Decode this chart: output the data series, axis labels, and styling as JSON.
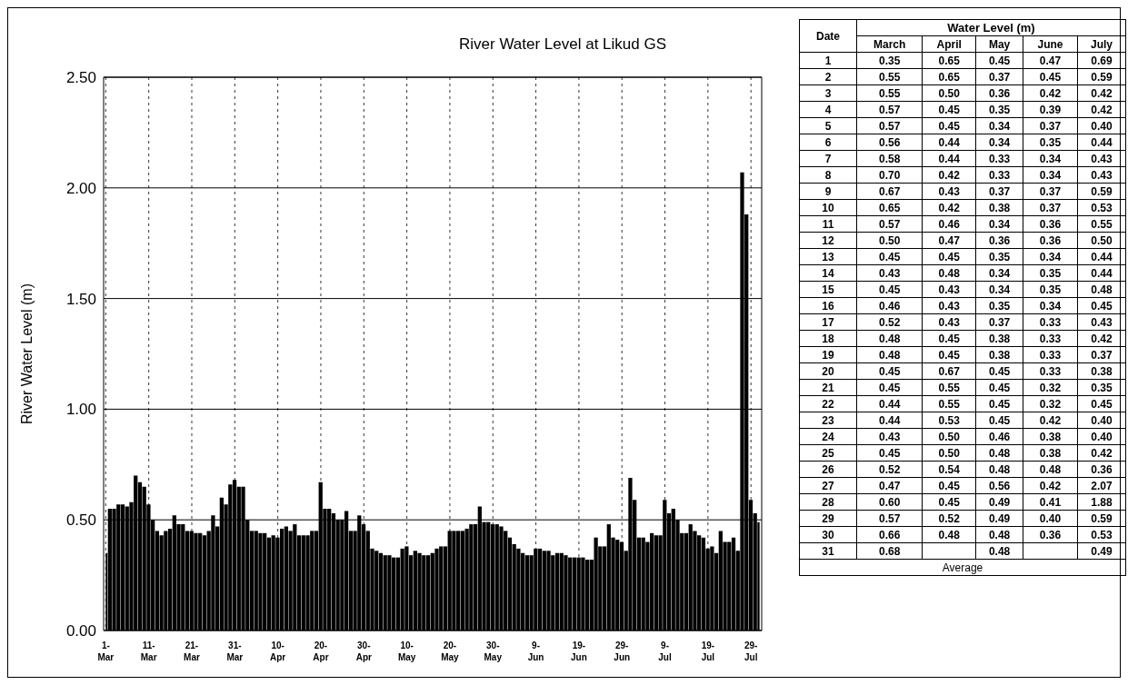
{
  "chart_data": [
    {
      "type": "bar",
      "title": "River Water Level at Likud GS",
      "ylabel": "River Water Level (m)",
      "x": [
        "--03-01",
        "--03-02",
        "--03-03",
        "--03-04",
        "--03-05",
        "--03-06",
        "--03-07",
        "--03-08",
        "--03-09",
        "--03-10",
        "--03-11",
        "--03-12",
        "--03-13",
        "--03-14",
        "--03-15",
        "--03-16",
        "--03-17",
        "--03-18",
        "--03-19",
        "--03-20",
        "--03-21",
        "--03-22",
        "--03-23",
        "--03-24",
        "--03-25",
        "--03-26",
        "--03-27",
        "--03-28",
        "--03-29",
        "--03-30",
        "--03-31",
        "--04-01",
        "--04-02",
        "--04-03",
        "--04-04",
        "--04-05",
        "--04-06",
        "--04-07",
        "--04-08",
        "--04-09",
        "--04-10",
        "--04-11",
        "--04-12",
        "--04-13",
        "--04-14",
        "--04-15",
        "--04-16",
        "--04-17",
        "--04-18",
        "--04-19",
        "--04-20",
        "--04-21",
        "--04-22",
        "--04-23",
        "--04-24",
        "--04-25",
        "--04-26",
        "--04-27",
        "--04-28",
        "--04-29",
        "--04-30",
        "--05-01",
        "--05-02",
        "--05-03",
        "--05-04",
        "--05-05",
        "--05-06",
        "--05-07",
        "--05-08",
        "--05-09",
        "--05-10",
        "--05-11",
        "--05-12",
        "--05-13",
        "--05-14",
        "--05-15",
        "--05-16",
        "--05-17",
        "--05-18",
        "--05-19",
        "--05-20",
        "--05-21",
        "--05-22",
        "--05-23",
        "--05-24",
        "--05-25",
        "--05-26",
        "--05-27",
        "--05-28",
        "--05-29",
        "--05-30",
        "--05-31",
        "--06-01",
        "--06-02",
        "--06-03",
        "--06-04",
        "--06-05",
        "--06-06",
        "--06-07",
        "--06-08",
        "--06-09",
        "--06-10",
        "--06-11",
        "--06-12",
        "--06-13",
        "--06-14",
        "--06-15",
        "--06-16",
        "--06-17",
        "--06-18",
        "--06-19",
        "--06-20",
        "--06-21",
        "--06-22",
        "--06-23",
        "--06-24",
        "--06-25",
        "--06-26",
        "--06-27",
        "--06-28",
        "--06-29",
        "--06-30",
        "--07-01",
        "--07-02",
        "--07-03",
        "--07-04",
        "--07-05",
        "--07-06",
        "--07-07",
        "--07-08",
        "--07-09",
        "--07-10",
        "--07-11",
        "--07-12",
        "--07-13",
        "--07-14",
        "--07-15",
        "--07-16",
        "--07-17",
        "--07-18",
        "--07-19",
        "--07-20",
        "--07-21",
        "--07-22",
        "--07-23",
        "--07-24",
        "--07-25",
        "--07-26",
        "--07-27",
        "--07-28",
        "--07-29",
        "--07-30",
        "--07-31"
      ],
      "values": [
        0.35,
        0.55,
        0.55,
        0.57,
        0.57,
        0.56,
        0.58,
        0.7,
        0.67,
        0.65,
        0.57,
        0.5,
        0.45,
        0.43,
        0.45,
        0.46,
        0.52,
        0.48,
        0.48,
        0.45,
        0.45,
        0.44,
        0.44,
        0.43,
        0.45,
        0.52,
        0.47,
        0.6,
        0.57,
        0.66,
        0.68,
        0.65,
        0.65,
        0.5,
        0.45,
        0.45,
        0.44,
        0.44,
        0.42,
        0.43,
        0.42,
        0.46,
        0.47,
        0.45,
        0.48,
        0.43,
        0.43,
        0.43,
        0.45,
        0.45,
        0.67,
        0.55,
        0.55,
        0.53,
        0.5,
        0.5,
        0.54,
        0.45,
        0.45,
        0.52,
        0.48,
        0.45,
        0.37,
        0.36,
        0.35,
        0.34,
        0.34,
        0.33,
        0.33,
        0.37,
        0.38,
        0.34,
        0.36,
        0.35,
        0.34,
        0.34,
        0.35,
        0.37,
        0.38,
        0.38,
        0.45,
        0.45,
        0.45,
        0.45,
        0.46,
        0.48,
        0.48,
        0.56,
        0.49,
        0.49,
        0.48,
        0.48,
        0.47,
        0.45,
        0.42,
        0.39,
        0.37,
        0.35,
        0.34,
        0.34,
        0.37,
        0.37,
        0.36,
        0.36,
        0.34,
        0.35,
        0.35,
        0.34,
        0.33,
        0.33,
        0.33,
        0.33,
        0.32,
        0.32,
        0.42,
        0.38,
        0.38,
        0.48,
        0.42,
        0.41,
        0.4,
        0.36,
        0.69,
        0.59,
        0.42,
        0.42,
        0.4,
        0.44,
        0.43,
        0.43,
        0.59,
        0.53,
        0.55,
        0.5,
        0.44,
        0.44,
        0.48,
        0.45,
        0.43,
        0.42,
        0.37,
        0.38,
        0.35,
        0.45,
        0.4,
        0.4,
        0.42,
        0.36,
        2.07,
        1.88,
        0.59,
        0.53,
        0.49
      ],
      "color": "#000000",
      "xlim": [
        "--03-01",
        "--07-31"
      ],
      "xticks": [
        {
          "value": "--03-01",
          "label": "1-Mar"
        },
        {
          "value": "--03-11",
          "label": "11-Mar"
        },
        {
          "value": "--03-21",
          "label": "21-Mar"
        },
        {
          "value": "--03-31",
          "label": "31-Mar"
        },
        {
          "value": "--04-10",
          "label": "10-Apr"
        },
        {
          "value": "--04-20",
          "label": "20-Apr"
        },
        {
          "value": "--04-30",
          "label": "30-Apr"
        },
        {
          "value": "--05-10",
          "label": "10-May"
        },
        {
          "value": "--05-20",
          "label": "20-May"
        },
        {
          "value": "--05-30",
          "label": "30-May"
        },
        {
          "value": "--06-09",
          "label": "9-Jun"
        },
        {
          "value": "--06-19",
          "label": "19-Jun"
        },
        {
          "value": "--06-29",
          "label": "29-Jun"
        },
        {
          "value": "--07-09",
          "label": "9-Jul"
        },
        {
          "value": "--07-19",
          "label": "19-Jul"
        },
        {
          "value": "--07-29",
          "label": "29-Jul"
        }
      ],
      "ylim": [
        0,
        2.5
      ],
      "yticks": [
        {
          "value": 0,
          "label": "0.00"
        },
        {
          "value": 0.5,
          "label": "0.50"
        },
        {
          "value": 1,
          "label": "1.00"
        },
        {
          "value": 1.5,
          "label": "1.50"
        },
        {
          "value": 2,
          "label": "2.00"
        },
        {
          "value": 2.5,
          "label": "2.50"
        }
      ],
      "grid": true
    },
    {
      "type": "heatmap",
      "title": "Water Level (m)",
      "ylabel": "Date",
      "categories": [
        "March",
        "April",
        "May",
        "June",
        "July"
      ],
      "y_categories": [
        "1",
        "2",
        "3",
        "4",
        "5",
        "6",
        "7",
        "8",
        "9",
        "10",
        "11",
        "12",
        "13",
        "14",
        "15",
        "16",
        "17",
        "18",
        "19",
        "20",
        "21",
        "22",
        "23",
        "24",
        "25",
        "26",
        "27",
        "28",
        "29",
        "30",
        "31"
      ],
      "cells": [
        [
          0.35,
          0.65,
          0.45,
          0.47,
          0.69
        ],
        [
          0.55,
          0.65,
          0.37,
          0.45,
          0.59
        ],
        [
          0.55,
          0.5,
          0.36,
          0.42,
          0.42
        ],
        [
          0.57,
          0.45,
          0.35,
          0.39,
          0.42
        ],
        [
          0.57,
          0.45,
          0.34,
          0.37,
          0.4
        ],
        [
          0.56,
          0.44,
          0.34,
          0.35,
          0.44
        ],
        [
          0.58,
          0.44,
          0.33,
          0.34,
          0.43
        ],
        [
          0.7,
          0.42,
          0.33,
          0.34,
          0.43
        ],
        [
          0.67,
          0.43,
          0.37,
          0.37,
          0.59
        ],
        [
          0.65,
          0.42,
          0.38,
          0.37,
          0.53
        ],
        [
          0.57,
          0.46,
          0.34,
          0.36,
          0.55
        ],
        [
          0.5,
          0.47,
          0.36,
          0.36,
          0.5
        ],
        [
          0.45,
          0.45,
          0.35,
          0.34,
          0.44
        ],
        [
          0.43,
          0.48,
          0.34,
          0.35,
          0.44
        ],
        [
          0.45,
          0.43,
          0.34,
          0.35,
          0.48
        ],
        [
          0.46,
          0.43,
          0.35,
          0.34,
          0.45
        ],
        [
          0.52,
          0.43,
          0.37,
          0.33,
          0.43
        ],
        [
          0.48,
          0.45,
          0.38,
          0.33,
          0.42
        ],
        [
          0.48,
          0.45,
          0.38,
          0.33,
          0.37
        ],
        [
          0.45,
          0.67,
          0.45,
          0.33,
          0.38
        ],
        [
          0.45,
          0.55,
          0.45,
          0.32,
          0.35
        ],
        [
          0.44,
          0.55,
          0.45,
          0.32,
          0.45
        ],
        [
          0.44,
          0.53,
          0.45,
          0.42,
          0.4
        ],
        [
          0.43,
          0.5,
          0.46,
          0.38,
          0.4
        ],
        [
          0.45,
          0.5,
          0.48,
          0.38,
          0.42
        ],
        [
          0.52,
          0.54,
          0.48,
          0.48,
          0.36
        ],
        [
          0.47,
          0.45,
          0.56,
          0.42,
          2.07
        ],
        [
          0.6,
          0.45,
          0.49,
          0.41,
          1.88
        ],
        [
          0.57,
          0.52,
          0.49,
          0.4,
          0.59
        ],
        [
          0.66,
          0.48,
          0.48,
          0.36,
          0.53
        ],
        [
          0.68,
          null,
          0.48,
          null,
          0.49
        ]
      ],
      "cell_labels": [
        [
          "0.35",
          "0.65",
          "0.45",
          "0.47",
          "0.69"
        ],
        [
          "0.55",
          "0.65",
          "0.37",
          "0.45",
          "0.59"
        ],
        [
          "0.55",
          "0.50",
          "0.36",
          "0.42",
          "0.42"
        ],
        [
          "0.57",
          "0.45",
          "0.35",
          "0.39",
          "0.42"
        ],
        [
          "0.57",
          "0.45",
          "0.34",
          "0.37",
          "0.40"
        ],
        [
          "0.56",
          "0.44",
          "0.34",
          "0.35",
          "0.44"
        ],
        [
          "0.58",
          "0.44",
          "0.33",
          "0.34",
          "0.43"
        ],
        [
          "0.70",
          "0.42",
          "0.33",
          "0.34",
          "0.43"
        ],
        [
          "0.67",
          "0.43",
          "0.37",
          "0.37",
          "0.59"
        ],
        [
          "0.65",
          "0.42",
          "0.38",
          "0.37",
          "0.53"
        ],
        [
          "0.57",
          "0.46",
          "0.34",
          "0.36",
          "0.55"
        ],
        [
          "0.50",
          "0.47",
          "0.36",
          "0.36",
          "0.50"
        ],
        [
          "0.45",
          "0.45",
          "0.35",
          "0.34",
          "0.44"
        ],
        [
          "0.43",
          "0.48",
          "0.34",
          "0.35",
          "0.44"
        ],
        [
          "0.45",
          "0.43",
          "0.34",
          "0.35",
          "0.48"
        ],
        [
          "0.46",
          "0.43",
          "0.35",
          "0.34",
          "0.45"
        ],
        [
          "0.52",
          "0.43",
          "0.37",
          "0.33",
          "0.43"
        ],
        [
          "0.48",
          "0.45",
          "0.38",
          "0.33",
          "0.42"
        ],
        [
          "0.48",
          "0.45",
          "0.38",
          "0.33",
          "0.37"
        ],
        [
          "0.45",
          "0.67",
          "0.45",
          "0.33",
          "0.38"
        ],
        [
          "0.45",
          "0.55",
          "0.45",
          "0.32",
          "0.35"
        ],
        [
          "0.44",
          "0.55",
          "0.45",
          "0.32",
          "0.45"
        ],
        [
          "0.44",
          "0.53",
          "0.45",
          "0.42",
          "0.40"
        ],
        [
          "0.43",
          "0.50",
          "0.46",
          "0.38",
          "0.40"
        ],
        [
          "0.45",
          "0.50",
          "0.48",
          "0.38",
          "0.42"
        ],
        [
          "0.52",
          "0.54",
          "0.48",
          "0.48",
          "0.36"
        ],
        [
          "0.47",
          "0.45",
          "0.56",
          "0.42",
          "2.07"
        ],
        [
          "0.60",
          "0.45",
          "0.49",
          "0.41",
          "1.88"
        ],
        [
          "0.57",
          "0.52",
          "0.49",
          "0.40",
          "0.59"
        ],
        [
          "0.66",
          "0.48",
          "0.48",
          "0.36",
          "0.53"
        ],
        [
          "0.68",
          null,
          "0.48",
          null,
          "0.49"
        ]
      ],
      "annotations": [
        "Average"
      ]
    }
  ]
}
